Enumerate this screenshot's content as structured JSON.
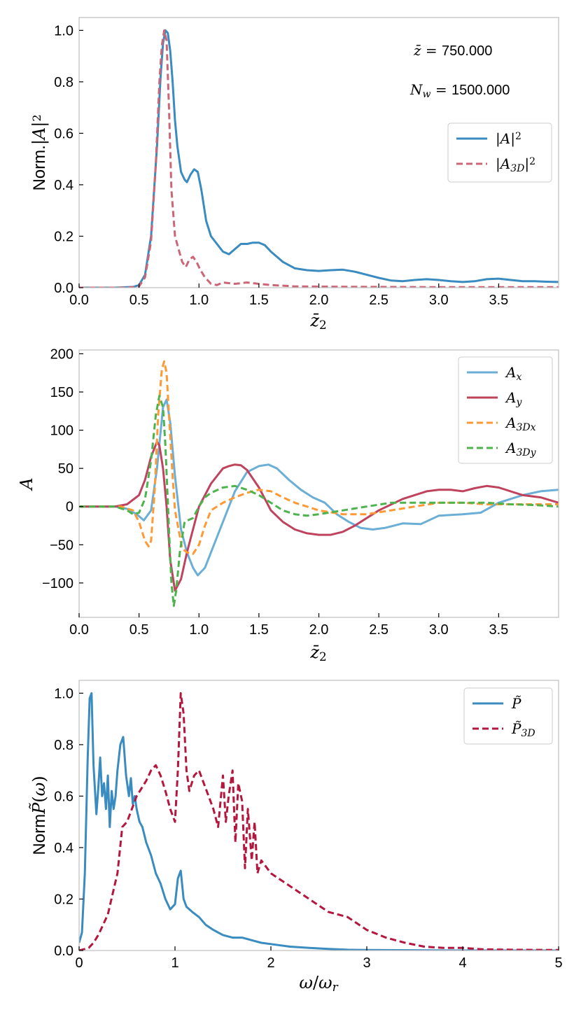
{
  "chart_data": [
    {
      "type": "line",
      "panel": "top",
      "xlabel": "z̄₂",
      "ylabel": "Norm.|A|²",
      "xlim": [
        0,
        4.0
      ],
      "ylim": [
        0,
        1.05
      ],
      "xticks": [
        0.0,
        0.5,
        1.0,
        1.5,
        2.0,
        2.5,
        3.0,
        3.5
      ],
      "xtick_labels": [
        "0.0",
        "0.5",
        "1.0",
        "1.5",
        "2.0",
        "2.5",
        "3.0",
        "3.5"
      ],
      "yticks": [
        0.0,
        0.2,
        0.4,
        0.6,
        0.8,
        1.0
      ],
      "ytick_labels": [
        "0.0",
        "0.2",
        "0.4",
        "0.6",
        "0.8",
        "1.0"
      ],
      "annotations": [
        "z̄ = 750.000",
        "Nw = 1500.000"
      ],
      "legend_position": "right",
      "series": [
        {
          "name": "|A|²",
          "color": "#3a8bbf",
          "style": "solid",
          "x": [
            0.0,
            0.3,
            0.45,
            0.5,
            0.55,
            0.6,
            0.65,
            0.68,
            0.7,
            0.72,
            0.74,
            0.76,
            0.78,
            0.8,
            0.82,
            0.85,
            0.88,
            0.9,
            0.93,
            0.96,
            0.99,
            1.02,
            1.06,
            1.1,
            1.15,
            1.2,
            1.25,
            1.3,
            1.35,
            1.4,
            1.45,
            1.5,
            1.55,
            1.6,
            1.65,
            1.7,
            1.8,
            1.9,
            2.0,
            2.1,
            2.2,
            2.3,
            2.4,
            2.5,
            2.6,
            2.7,
            2.8,
            2.9,
            3.0,
            3.1,
            3.2,
            3.3,
            3.4,
            3.5,
            3.6,
            3.7,
            3.8,
            3.9,
            4.0
          ],
          "y": [
            0.0,
            0.0,
            0.003,
            0.01,
            0.05,
            0.2,
            0.55,
            0.82,
            0.95,
            1.0,
            0.99,
            0.92,
            0.8,
            0.65,
            0.55,
            0.45,
            0.42,
            0.41,
            0.44,
            0.46,
            0.45,
            0.38,
            0.26,
            0.2,
            0.17,
            0.14,
            0.13,
            0.15,
            0.17,
            0.17,
            0.175,
            0.175,
            0.165,
            0.14,
            0.12,
            0.1,
            0.075,
            0.068,
            0.065,
            0.068,
            0.07,
            0.062,
            0.05,
            0.038,
            0.028,
            0.025,
            0.03,
            0.033,
            0.03,
            0.025,
            0.022,
            0.025,
            0.033,
            0.035,
            0.03,
            0.025,
            0.025,
            0.023,
            0.022
          ]
        },
        {
          "name": "|A₃D|²",
          "color": "#cc6677",
          "style": "dashed",
          "x": [
            0.0,
            0.4,
            0.5,
            0.55,
            0.6,
            0.64,
            0.67,
            0.69,
            0.71,
            0.73,
            0.75,
            0.77,
            0.8,
            0.83,
            0.86,
            0.89,
            0.92,
            0.95,
            0.98,
            1.01,
            1.05,
            1.1,
            1.15,
            1.2,
            1.3,
            1.4,
            1.5,
            1.6,
            1.7,
            1.8,
            2.0,
            2.5,
            3.0,
            3.5,
            4.0
          ],
          "y": [
            0.0,
            0.0,
            0.005,
            0.04,
            0.18,
            0.48,
            0.8,
            0.94,
            1.0,
            0.96,
            0.7,
            0.38,
            0.2,
            0.15,
            0.1,
            0.08,
            0.11,
            0.12,
            0.1,
            0.07,
            0.04,
            0.015,
            0.01,
            0.02,
            0.015,
            0.02,
            0.015,
            0.01,
            0.008,
            0.005,
            0.004,
            0.003,
            0.002,
            0.002,
            0.002
          ]
        }
      ]
    },
    {
      "type": "line",
      "panel": "middle",
      "xlabel": "z̄₂",
      "ylabel": "A",
      "xlim": [
        0,
        4.0
      ],
      "ylim": [
        -145,
        205
      ],
      "xticks": [
        0.0,
        0.5,
        1.0,
        1.5,
        2.0,
        2.5,
        3.0,
        3.5
      ],
      "xtick_labels": [
        "0.0",
        "0.5",
        "1.0",
        "1.5",
        "2.0",
        "2.5",
        "3.0",
        "3.5"
      ],
      "yticks": [
        -100,
        -50,
        0,
        50,
        100,
        150,
        200
      ],
      "ytick_labels": [
        "−100",
        "−50",
        "0",
        "50",
        "100",
        "150",
        "200"
      ],
      "legend_position": "top-right",
      "series": [
        {
          "name": "Ax",
          "color": "#6baed6",
          "style": "solid",
          "x": [
            0.0,
            0.3,
            0.4,
            0.48,
            0.54,
            0.6,
            0.65,
            0.7,
            0.73,
            0.76,
            0.8,
            0.85,
            0.9,
            0.95,
            0.99,
            1.05,
            1.1,
            1.2,
            1.3,
            1.4,
            1.5,
            1.58,
            1.65,
            1.75,
            1.85,
            1.95,
            2.05,
            2.15,
            2.25,
            2.35,
            2.45,
            2.55,
            2.7,
            2.85,
            3.0,
            3.2,
            3.35,
            3.5,
            3.7,
            3.85,
            4.0
          ],
          "y": [
            0,
            0,
            -3,
            -10,
            -18,
            -5,
            50,
            130,
            140,
            110,
            40,
            -30,
            -60,
            -80,
            -90,
            -80,
            -60,
            -20,
            20,
            45,
            53,
            55,
            50,
            35,
            22,
            12,
            5,
            -10,
            -20,
            -28,
            -30,
            -28,
            -22,
            -23,
            -12,
            -10,
            -8,
            5,
            15,
            20,
            22
          ]
        },
        {
          "name": "Ay",
          "color": "#c0435e",
          "style": "solid",
          "x": [
            0.0,
            0.3,
            0.4,
            0.5,
            0.55,
            0.6,
            0.65,
            0.67,
            0.7,
            0.73,
            0.76,
            0.8,
            0.85,
            0.9,
            0.95,
            1.0,
            1.1,
            1.2,
            1.25,
            1.3,
            1.35,
            1.4,
            1.5,
            1.6,
            1.7,
            1.8,
            1.9,
            2.0,
            2.1,
            2.2,
            2.3,
            2.5,
            2.7,
            2.9,
            3.0,
            3.1,
            3.2,
            3.3,
            3.4,
            3.5,
            3.7,
            3.85,
            4.0
          ],
          "y": [
            0,
            0,
            3,
            15,
            35,
            65,
            85,
            80,
            50,
            0,
            -70,
            -110,
            -95,
            -60,
            -30,
            0,
            30,
            50,
            53,
            55,
            54,
            48,
            25,
            -5,
            -20,
            -30,
            -35,
            -37,
            -37,
            -33,
            -25,
            -5,
            10,
            20,
            22,
            22,
            20,
            24,
            27,
            25,
            15,
            12,
            5
          ]
        },
        {
          "name": "A3Dx",
          "color": "#ff9933",
          "style": "dashed",
          "x": [
            0.0,
            0.35,
            0.45,
            0.5,
            0.55,
            0.58,
            0.6,
            0.63,
            0.66,
            0.69,
            0.71,
            0.73,
            0.75,
            0.78,
            0.8,
            0.83,
            0.86,
            0.9,
            0.95,
            1.0,
            1.05,
            1.1,
            1.2,
            1.3,
            1.4,
            1.5,
            1.6,
            1.7,
            1.8,
            1.9,
            2.0,
            2.2,
            2.4,
            2.6,
            2.8,
            3.0,
            3.2,
            3.4,
            3.6,
            3.8,
            4.0
          ],
          "y": [
            0,
            0,
            -5,
            -20,
            -45,
            -52,
            -45,
            20,
            120,
            180,
            190,
            175,
            120,
            40,
            -5,
            -30,
            -55,
            -60,
            -62,
            -50,
            -25,
            -5,
            5,
            12,
            18,
            22,
            20,
            12,
            5,
            0,
            -5,
            -10,
            -10,
            -5,
            0,
            5,
            5,
            3,
            3,
            3,
            3
          ]
        },
        {
          "name": "A3Dy",
          "color": "#4db34d",
          "style": "dashed",
          "x": [
            0.0,
            0.3,
            0.4,
            0.45,
            0.5,
            0.55,
            0.6,
            0.64,
            0.67,
            0.7,
            0.72,
            0.75,
            0.77,
            0.79,
            0.81,
            0.84,
            0.88,
            0.95,
            1.0,
            1.05,
            1.1,
            1.2,
            1.3,
            1.4,
            1.5,
            1.6,
            1.7,
            1.8,
            1.9,
            2.0,
            2.2,
            2.4,
            2.6,
            2.8,
            3.0,
            3.2,
            3.4,
            3.6,
            3.8,
            4.0
          ],
          "y": [
            0,
            0,
            -5,
            -10,
            -8,
            10,
            60,
            120,
            145,
            130,
            80,
            -30,
            -100,
            -130,
            -110,
            -60,
            -20,
            -15,
            0,
            12,
            18,
            25,
            27,
            22,
            15,
            5,
            -5,
            -10,
            -12,
            -10,
            -5,
            0,
            5,
            5,
            5,
            5,
            5,
            3,
            2,
            0
          ]
        }
      ]
    },
    {
      "type": "line",
      "panel": "bottom",
      "xlabel": "ω/ωr",
      "ylabel": "Norm P̃(ω)",
      "xlim": [
        0,
        5
      ],
      "ylim": [
        0,
        1.05
      ],
      "xticks": [
        0,
        1,
        2,
        3,
        4,
        5
      ],
      "xtick_labels": [
        "0",
        "1",
        "2",
        "3",
        "4",
        "5"
      ],
      "yticks": [
        0.0,
        0.2,
        0.4,
        0.6,
        0.8,
        1.0
      ],
      "ytick_labels": [
        "0.0",
        "0.2",
        "0.4",
        "0.6",
        "0.8",
        "1.0"
      ],
      "legend_position": "top-right",
      "series": [
        {
          "name": "P̃",
          "color": "#3a8bbf",
          "style": "solid",
          "x": [
            0.0,
            0.03,
            0.06,
            0.09,
            0.11,
            0.13,
            0.15,
            0.18,
            0.2,
            0.22,
            0.24,
            0.26,
            0.28,
            0.3,
            0.32,
            0.34,
            0.36,
            0.38,
            0.4,
            0.43,
            0.46,
            0.49,
            0.52,
            0.54,
            0.56,
            0.58,
            0.6,
            0.63,
            0.66,
            0.7,
            0.75,
            0.8,
            0.85,
            0.9,
            0.95,
            1.0,
            1.03,
            1.06,
            1.09,
            1.12,
            1.18,
            1.25,
            1.32,
            1.4,
            1.5,
            1.6,
            1.7,
            1.8,
            1.9,
            2.0,
            2.2,
            2.4,
            2.6,
            2.8,
            3.0,
            3.5,
            4.0,
            4.5,
            5.0
          ],
          "y": [
            0.03,
            0.07,
            0.3,
            0.75,
            0.98,
            1.0,
            0.72,
            0.53,
            0.63,
            0.75,
            0.6,
            0.65,
            0.55,
            0.68,
            0.48,
            0.62,
            0.55,
            0.6,
            0.7,
            0.8,
            0.83,
            0.68,
            0.6,
            0.67,
            0.57,
            0.6,
            0.55,
            0.5,
            0.48,
            0.42,
            0.37,
            0.3,
            0.26,
            0.2,
            0.16,
            0.18,
            0.28,
            0.31,
            0.2,
            0.17,
            0.15,
            0.13,
            0.1,
            0.08,
            0.06,
            0.05,
            0.05,
            0.04,
            0.03,
            0.025,
            0.015,
            0.01,
            0.006,
            0.003,
            0.002,
            0.001,
            0.0,
            0.0,
            0.0
          ]
        },
        {
          "name": "P̃3D",
          "color": "#b5163d",
          "style": "dashed",
          "x": [
            0.0,
            0.1,
            0.15,
            0.2,
            0.25,
            0.3,
            0.35,
            0.4,
            0.45,
            0.5,
            0.55,
            0.6,
            0.65,
            0.7,
            0.75,
            0.8,
            0.85,
            0.9,
            0.95,
            1.0,
            1.03,
            1.06,
            1.09,
            1.12,
            1.15,
            1.2,
            1.25,
            1.3,
            1.35,
            1.4,
            1.45,
            1.5,
            1.53,
            1.56,
            1.6,
            1.63,
            1.66,
            1.7,
            1.73,
            1.76,
            1.8,
            1.83,
            1.86,
            1.9,
            2.0,
            2.2,
            2.4,
            2.6,
            2.8,
            3.0,
            3.2,
            3.4,
            3.6,
            3.8,
            4.0,
            4.2,
            4.5,
            5.0
          ],
          "y": [
            0.0,
            0.01,
            0.03,
            0.06,
            0.1,
            0.14,
            0.22,
            0.3,
            0.48,
            0.5,
            0.55,
            0.6,
            0.63,
            0.66,
            0.7,
            0.72,
            0.68,
            0.62,
            0.55,
            0.5,
            0.7,
            1.0,
            0.92,
            0.7,
            0.62,
            0.68,
            0.7,
            0.65,
            0.6,
            0.55,
            0.48,
            0.68,
            0.5,
            0.6,
            0.7,
            0.42,
            0.65,
            0.58,
            0.32,
            0.55,
            0.35,
            0.5,
            0.3,
            0.35,
            0.3,
            0.25,
            0.2,
            0.15,
            0.13,
            0.08,
            0.05,
            0.03,
            0.015,
            0.01,
            0.01,
            0.005,
            0.003,
            0.002
          ]
        }
      ]
    }
  ]
}
